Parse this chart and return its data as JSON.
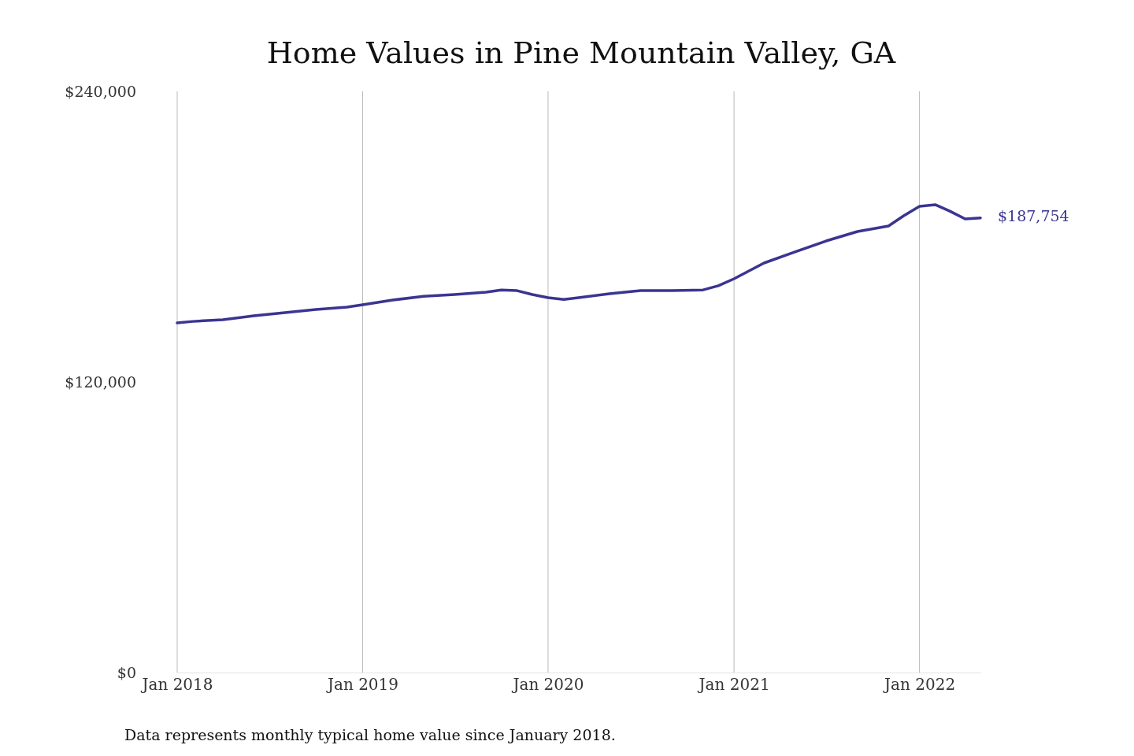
{
  "chart_data": {
    "type": "line",
    "title": "Home Values in Pine Mountain Valley, GA",
    "x": [
      "2018-01",
      "2018-02",
      "2018-04",
      "2018-06",
      "2018-08",
      "2018-10",
      "2018-12",
      "2019-01",
      "2019-03",
      "2019-05",
      "2019-07",
      "2019-09",
      "2019-10",
      "2019-11",
      "2019-12",
      "2020-01",
      "2020-02",
      "2020-03",
      "2020-05",
      "2020-07",
      "2020-09",
      "2020-11",
      "2020-12",
      "2021-01",
      "2021-03",
      "2021-05",
      "2021-07",
      "2021-09",
      "2021-11",
      "2021-12",
      "2022-01",
      "2022-02",
      "2022-03",
      "2022-04",
      "2022-05"
    ],
    "series": [
      {
        "color": "#3a3591",
        "values": [
          144400,
          145000,
          145700,
          147300,
          148600,
          149900,
          150900,
          151900,
          153800,
          155400,
          156100,
          157100,
          158000,
          157700,
          156100,
          154800,
          154100,
          154800,
          156400,
          157700,
          157700,
          158000,
          159700,
          162600,
          169100,
          173700,
          178200,
          182100,
          184400,
          188600,
          192500,
          193200,
          190600,
          187300,
          187754
        ]
      }
    ],
    "xticks": [
      {
        "value": "2018-01",
        "label": "Jan 2018"
      },
      {
        "value": "2019-01",
        "label": "Jan 2019"
      },
      {
        "value": "2020-01",
        "label": "Jan 2020"
      },
      {
        "value": "2021-01",
        "label": "Jan 2021"
      },
      {
        "value": "2022-01",
        "label": "Jan 2022"
      }
    ],
    "xlim": [
      "2018-01",
      "2022-05"
    ],
    "ylim": [
      0,
      240000
    ],
    "yticks": [
      {
        "value": 0,
        "label": "$0"
      },
      {
        "value": 120000,
        "label": "$120,000"
      },
      {
        "value": 240000,
        "label": "$240,000"
      }
    ],
    "grid": "x",
    "line_style": "solid",
    "marker": "none",
    "annotations": [
      {
        "text": "$187,754",
        "x": "2022-05",
        "y": 187754
      },
      "Data represents monthly typical home value since January 2018."
    ]
  }
}
